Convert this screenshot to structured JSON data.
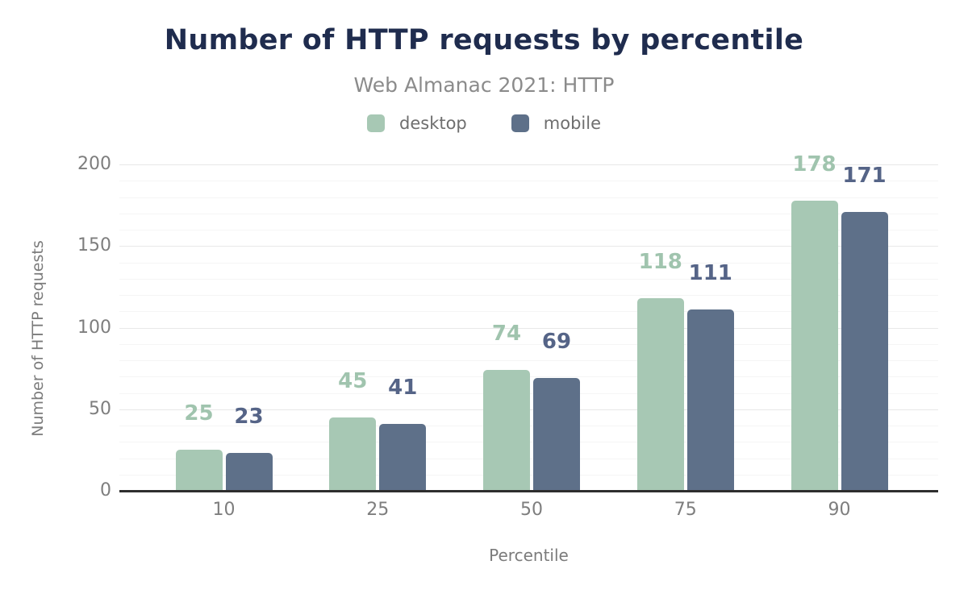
{
  "header": {
    "title": "Number of HTTP requests by percentile",
    "subtitle": "Web Almanac 2021: HTTP"
  },
  "legend": [
    {
      "label": "desktop",
      "color": "#a7c8b4"
    },
    {
      "label": "mobile",
      "color": "#5e7089"
    }
  ],
  "chart_data": {
    "type": "bar",
    "title": "Number of HTTP requests by percentile",
    "subtitle": "Web Almanac 2021: HTTP",
    "categories": [
      "10",
      "25",
      "50",
      "75",
      "90"
    ],
    "series": [
      {
        "name": "desktop",
        "color": "#a7c8b4",
        "label_color": "#a0c4ae",
        "values": [
          25,
          45,
          74,
          118,
          178
        ]
      },
      {
        "name": "mobile",
        "color": "#5e7089",
        "label_color": "#556487",
        "values": [
          23,
          41,
          69,
          111,
          171
        ]
      }
    ],
    "xlabel": "Percentile",
    "ylabel": "Number of HTTP requests",
    "ylim": [
      0,
      200
    ],
    "yticks": [
      0,
      50,
      100,
      150,
      200
    ],
    "minor_grid_step": 10,
    "grid": true,
    "legend_position": "top",
    "data_labels": true
  },
  "colors": {
    "title": "#1f2c4e",
    "subtitle": "#8b8b8b",
    "tick": "#7e7e7e",
    "axis_title": "#7b7b7b",
    "axis_line": "#2e2e2e",
    "grid_major": "#e8e8e8",
    "grid_minor": "#f5f5f5",
    "background": "#ffffff"
  }
}
